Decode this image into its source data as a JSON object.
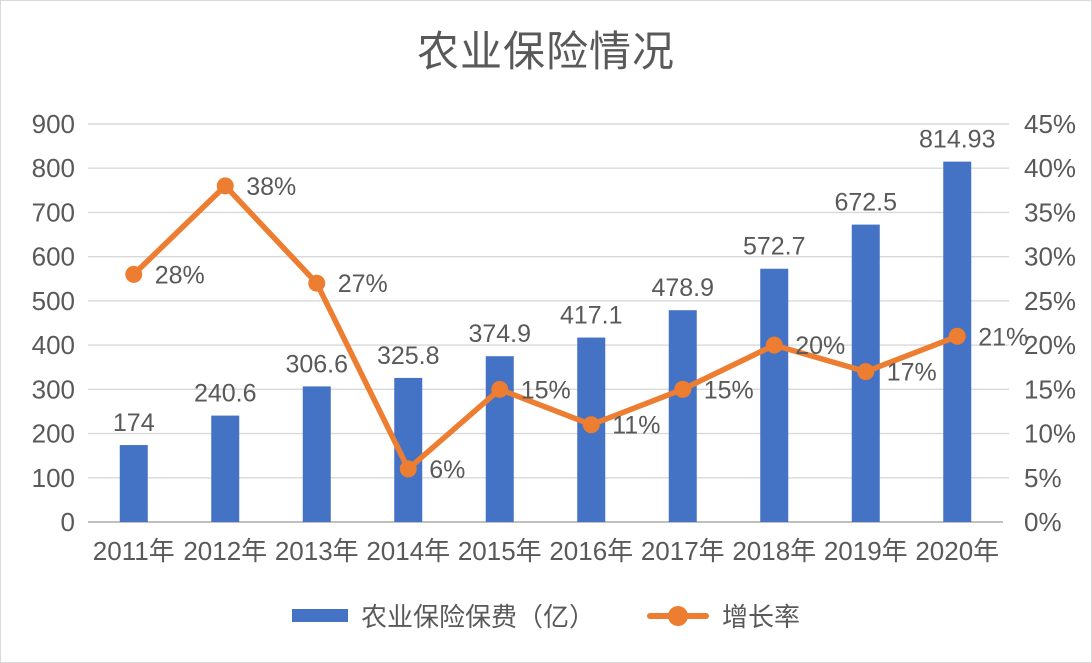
{
  "chart_data": {
    "type": "bar",
    "combo": "bar+line",
    "title": "农业保险情况",
    "categories": [
      "2011年",
      "2012年",
      "2013年",
      "2014年",
      "2015年",
      "2016年",
      "2017年",
      "2018年",
      "2019年",
      "2020年"
    ],
    "series": [
      {
        "name": "农业保险保费（亿）",
        "type": "bar",
        "axis": "left",
        "color": "#4472C4",
        "values": [
          174,
          240.6,
          306.6,
          325.8,
          374.9,
          417.1,
          478.9,
          572.7,
          672.5,
          814.93
        ],
        "data_labels": [
          "174",
          "240.6",
          "306.6",
          "325.8",
          "374.9",
          "417.1",
          "478.9",
          "572.7",
          "672.5",
          "814.93"
        ]
      },
      {
        "name": "增长率",
        "type": "line",
        "axis": "right",
        "color": "#ED7D31",
        "values": [
          28,
          38,
          27,
          6,
          15,
          11,
          15,
          20,
          17,
          21
        ],
        "data_labels": [
          "28%",
          "38%",
          "27%",
          "6%",
          "15%",
          "11%",
          "15%",
          "20%",
          "17%",
          "21%"
        ]
      }
    ],
    "left_axis": {
      "min": 0,
      "max": 900,
      "step": 100,
      "tick_labels": [
        "0",
        "100",
        "200",
        "300",
        "400",
        "500",
        "600",
        "700",
        "800",
        "900"
      ]
    },
    "right_axis": {
      "min": 0,
      "max": 45,
      "step": 5,
      "tick_labels": [
        "0%",
        "5%",
        "10%",
        "15%",
        "20%",
        "25%",
        "30%",
        "35%",
        "40%",
        "45%"
      ]
    },
    "grid": true,
    "legend_position": "bottom"
  },
  "colors": {
    "text": "#595959",
    "gridline": "#D9D9D9",
    "axis_line": "#C0C0C0",
    "background": "#FFFFFF",
    "border": "#D9D9D9"
  }
}
